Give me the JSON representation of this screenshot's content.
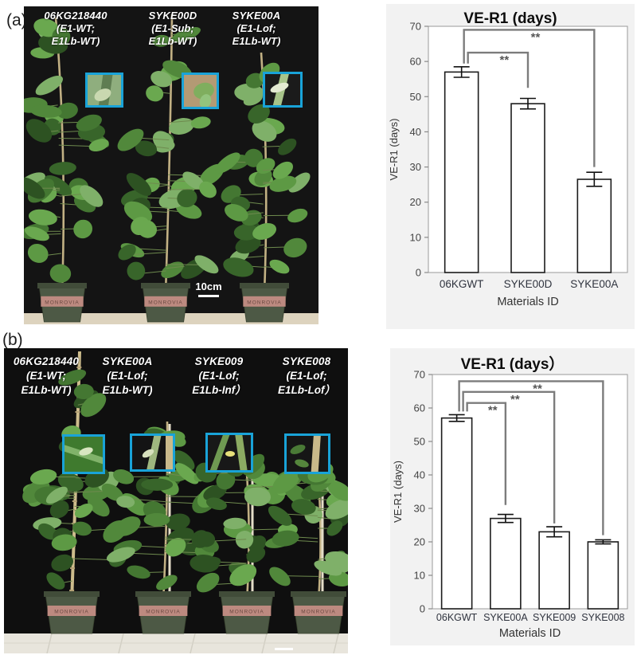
{
  "panels": [
    {
      "tag": "(a)",
      "photo": {
        "labels": [
          {
            "name": "06KG218440",
            "line2": "(E1-WT;",
            "line3": "E1Lb-WT)"
          },
          {
            "name": "SYKE00D",
            "line2": "(E1-Sub;",
            "line3": "E1Lb-WT)"
          },
          {
            "name": "SYKE00A",
            "line2": "(E1-Lof;",
            "line3": "E1Lb-WT)"
          }
        ],
        "scale_bar_label": "10cm",
        "pot_brand": "MONROVIA"
      }
    },
    {
      "tag": "(b)",
      "photo": {
        "labels": [
          {
            "name": "06KG218440",
            "line2": "(E1-WT;",
            "line3": "E1Lb-WT)"
          },
          {
            "name": "SYKE00A",
            "line2": "(E1-Lof;",
            "line3": "E1Lb-WT)"
          },
          {
            "name": "SYKE009",
            "line2": "(E1-Lof;",
            "line3": "E1Lb-Inf）"
          },
          {
            "name": "SYKE008",
            "line2": "(E1-Lof;",
            "line3": "E1Lb-Lof）"
          }
        ],
        "pot_brand": "MONROVIA"
      }
    }
  ],
  "chart_data": [
    {
      "type": "bar",
      "title": "VE-R1 (days)",
      "categories": [
        "06KGWT",
        "SYKE00D",
        "SYKE00A"
      ],
      "values": [
        57,
        48,
        26.5
      ],
      "errors": [
        1.5,
        1.5,
        2
      ],
      "xlabel": "Materials ID",
      "ylabel": "VE-R1 (days)",
      "ylim": [
        0,
        70
      ],
      "yticks": [
        0,
        10,
        20,
        30,
        40,
        50,
        60,
        70
      ],
      "grid": false,
      "legend": "none",
      "panel_bg": "#f2f2f2",
      "plot_bg": "#ffffff",
      "bar_fill": "#ffffff",
      "bar_stroke": "#1c1c1c",
      "sig_color": "#7c7c7c",
      "significance": [
        {
          "from": 0,
          "to": 1,
          "label": "**",
          "level": 62.5,
          "drop_to": 52.5
        },
        {
          "from": 0,
          "to": 2,
          "label": "**",
          "level": 69,
          "drop_to": 30
        }
      ]
    },
    {
      "type": "bar",
      "title": "VE-R1 (days）",
      "categories": [
        "06KGWT",
        "SYKE00A",
        "SYKE009",
        "SYKE008"
      ],
      "values": [
        57,
        27,
        23,
        20
      ],
      "errors": [
        1,
        1.2,
        1.5,
        0.6
      ],
      "xlabel": "Materials ID",
      "ylabel": "VE-R1 (days)",
      "ylim": [
        0,
        70
      ],
      "yticks": [
        0,
        10,
        20,
        30,
        40,
        50,
        60,
        70
      ],
      "grid": false,
      "legend": "none",
      "panel_bg": "#f2f2f2",
      "plot_bg": "#ffffff",
      "bar_fill": "#ffffff",
      "bar_stroke": "#1c1c1c",
      "sig_color": "#7c7c7c",
      "significance": [
        {
          "from": 0,
          "to": 1,
          "label": "**",
          "level": 61.5,
          "drop_to": 31
        },
        {
          "from": 0,
          "to": 2,
          "label": "**",
          "level": 64.8,
          "drop_to": 25.5
        },
        {
          "from": 0,
          "to": 3,
          "label": "**",
          "level": 68,
          "drop_to": 22
        }
      ]
    }
  ]
}
